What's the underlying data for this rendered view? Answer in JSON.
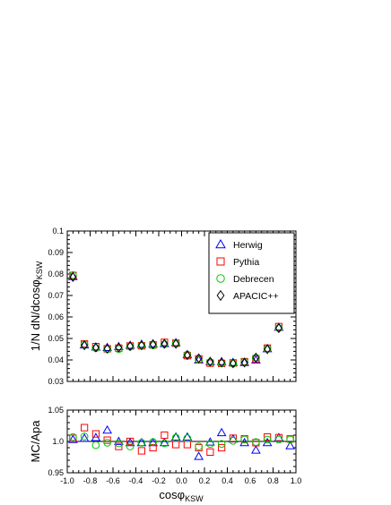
{
  "chart_data": [
    {
      "type": "scatter",
      "ylabel": "1/N dN/dcos",
      "ylabel_symbol": "φ",
      "ylabel_sub": "KSW",
      "xlim": [
        -1.0,
        1.0
      ],
      "ylim": [
        0.03,
        0.1
      ],
      "yticks": [
        "0.03",
        "0.04",
        "0.05",
        "0.06",
        "0.07",
        "0.08",
        "0.09",
        "0.1"
      ],
      "legend_position": "top-right",
      "x": [
        -0.95,
        -0.85,
        -0.75,
        -0.65,
        -0.55,
        -0.45,
        -0.35,
        -0.25,
        -0.15,
        -0.05,
        0.05,
        0.15,
        0.25,
        0.35,
        0.45,
        0.55,
        0.65,
        0.75,
        0.85,
        0.95
      ],
      "series": [
        {
          "name": "Herwig",
          "marker": "triangle",
          "color": "#0000ff",
          "values": [
            0.0788,
            0.047,
            0.046,
            0.0458,
            0.0462,
            0.0468,
            0.0473,
            0.0475,
            0.0476,
            0.048,
            0.0425,
            0.04,
            0.0392,
            0.0392,
            0.0388,
            0.0388,
            0.04,
            0.0452,
            0.0552,
            0.0795
          ]
        },
        {
          "name": "Pythia",
          "marker": "square",
          "color": "#ff0000",
          "values": [
            0.0793,
            0.0475,
            0.0462,
            0.0452,
            0.0455,
            0.0465,
            0.0466,
            0.047,
            0.0482,
            0.0478,
            0.042,
            0.0405,
            0.0385,
            0.0384,
            0.0386,
            0.0392,
            0.0405,
            0.0455,
            0.0555,
            0.08
          ]
        },
        {
          "name": "Debrecen",
          "marker": "circle",
          "color": "#00cc00",
          "values": [
            0.0795,
            0.0472,
            0.0455,
            0.045,
            0.045,
            0.0462,
            0.0468,
            0.0468,
            0.0473,
            0.0478,
            0.0425,
            0.04,
            0.039,
            0.0385,
            0.0383,
            0.0391,
            0.041,
            0.0453,
            0.0548,
            0.08
          ]
        },
        {
          "name": "APACIC++",
          "marker": "diamond",
          "color": "#000000",
          "values": [
            0.0786,
            0.0468,
            0.0458,
            0.0452,
            0.0458,
            0.0464,
            0.0468,
            0.0473,
            0.0475,
            0.0475,
            0.0422,
            0.0408,
            0.0392,
            0.0388,
            0.0384,
            0.0388,
            0.0411,
            0.045,
            0.0548,
            0.0795
          ]
        }
      ]
    },
    {
      "type": "scatter",
      "ylabel": "MC/Apa",
      "xlabel": "cos",
      "xlabel_symbol": "φ",
      "xlabel_sub": "KSW",
      "xlim": [
        -1.0,
        1.0
      ],
      "ylim": [
        0.95,
        1.05
      ],
      "yticks": [
        "0.95",
        "1.0",
        "1.05"
      ],
      "xticks": [
        "-1.0",
        "-0.8",
        "-0.6",
        "-0.4",
        "-0.2",
        "0.0",
        "0.2",
        "0.4",
        "0.6",
        "0.8",
        "1.0"
      ],
      "reference_line": 1.0,
      "x": [
        -0.95,
        -0.85,
        -0.75,
        -0.65,
        -0.55,
        -0.45,
        -0.35,
        -0.25,
        -0.15,
        -0.05,
        0.05,
        0.15,
        0.25,
        0.35,
        0.45,
        0.55,
        0.65,
        0.75,
        0.85,
        0.95
      ],
      "series": [
        {
          "name": "Herwig",
          "marker": "triangle",
          "color": "#0000ff",
          "values": [
            1.003,
            1.005,
            1.006,
            1.018,
            1.0,
            0.998,
            0.998,
            0.998,
            0.998,
            1.007,
            1.007,
            0.976,
            0.999,
            1.014,
            1.004,
            0.998,
            0.986,
            0.998,
            1.006,
            0.993
          ]
        },
        {
          "name": "Pythia",
          "marker": "square",
          "color": "#ff0000",
          "values": [
            1.005,
            1.022,
            1.012,
            1.002,
            0.992,
            1.0,
            0.985,
            0.99,
            1.01,
            0.995,
            0.995,
            0.99,
            0.983,
            0.99,
            1.005,
            1.004,
            0.998,
            1.007,
            1.006,
            1.004
          ]
        },
        {
          "name": "Debrecen",
          "marker": "circle",
          "color": "#00cc00",
          "values": [
            1.007,
            1.008,
            0.994,
            0.998,
            0.997,
            0.992,
            0.998,
            0.999,
            0.997,
            1.006,
            1.005,
            0.992,
            0.996,
            0.996,
            1.001,
            1.003,
            0.999,
            1.003,
            1.003,
            1.003
          ]
        }
      ]
    }
  ]
}
